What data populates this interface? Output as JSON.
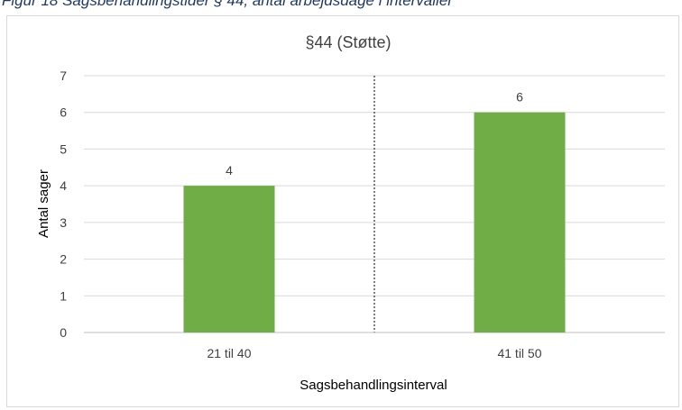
{
  "caption": "Figur 18 Sagsbehandlingstider § 44, antal arbejdsdage i intervaller",
  "chart_data": {
    "type": "bar",
    "title": "§44 (Støtte)",
    "xlabel": "Sagsbehandlingsinterval",
    "ylabel": "Antal sager",
    "categories": [
      "21 til 40",
      "41 til 50"
    ],
    "values": [
      4,
      6
    ],
    "data_labels": [
      "4",
      "6"
    ],
    "ylim": [
      0,
      7
    ],
    "yticks": [
      0,
      1,
      2,
      3,
      4,
      5,
      6,
      7
    ],
    "bar_color": "#70ad47",
    "grid": true,
    "grid_color": "#d9d9d9",
    "category_separator": "dotted"
  }
}
